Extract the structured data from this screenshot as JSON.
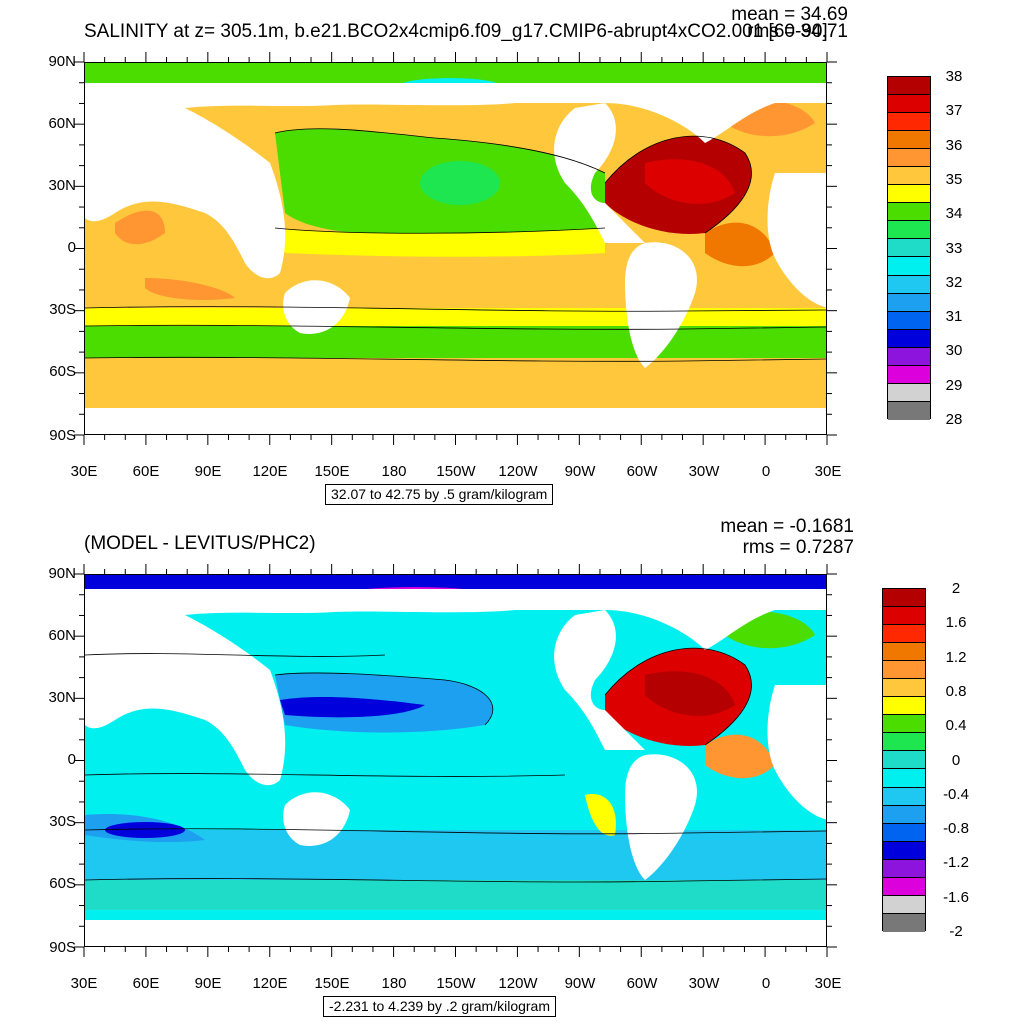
{
  "top": {
    "title": "SALINITY at z= 305.1m, b.e21.BCO2x4cmip6.f09_g17.CMIP6-abrupt4xCO2.001 [60-90]",
    "mean": "mean = 34.69",
    "rms": "rms = 34.71",
    "info": "32.07 to 42.75 by .5 gram/kilogram",
    "colorbar": {
      "labels": [
        "38",
        "37",
        "36",
        "35",
        "34",
        "33",
        "32",
        "31",
        "30",
        "29",
        "28"
      ],
      "colors": [
        "#b40000",
        "#dc0000",
        "#ff2800",
        "#f07800",
        "#ff9632",
        "#ffc83c",
        "#ffff00",
        "#4bdc00",
        "#1ee650",
        "#1edcc8",
        "#00f0f0",
        "#1ec8f0",
        "#1ea0f0",
        "#0064f0",
        "#0000dc",
        "#8c14dc",
        "#dc00dc",
        "#d2d2d2",
        "#787878"
      ]
    }
  },
  "bottom": {
    "title": "(MODEL - LEVITUS/PHC2)",
    "mean": "mean = -0.1681",
    "rms": "rms = 0.7287",
    "info": "-2.231 to 4.239 by .2 gram/kilogram",
    "colorbar": {
      "labels": [
        "2",
        "1.6",
        "1.2",
        "0.8",
        "0.4",
        "0",
        "-0.4",
        "-0.8",
        "-1.2",
        "-1.6",
        "-2"
      ],
      "colors": [
        "#b40000",
        "#dc0000",
        "#ff2800",
        "#f07800",
        "#ff9632",
        "#ffc83c",
        "#ffff00",
        "#4bdc00",
        "#1ee650",
        "#1edcc8",
        "#00f0f0",
        "#1ec8f0",
        "#1ea0f0",
        "#0064f0",
        "#0000dc",
        "#8c14dc",
        "#dc00dc",
        "#d2d2d2",
        "#787878"
      ]
    }
  },
  "axes": {
    "lat_labels": [
      "90N",
      "60N",
      "30N",
      "0",
      "30S",
      "60S",
      "90S"
    ],
    "lon_labels": [
      "30E",
      "60E",
      "90E",
      "120E",
      "150E",
      "180",
      "150W",
      "120W",
      "90W",
      "60W",
      "30W",
      "0",
      "30E"
    ]
  },
  "colors": {
    "land": "#ffffff",
    "contour": "#000000"
  }
}
